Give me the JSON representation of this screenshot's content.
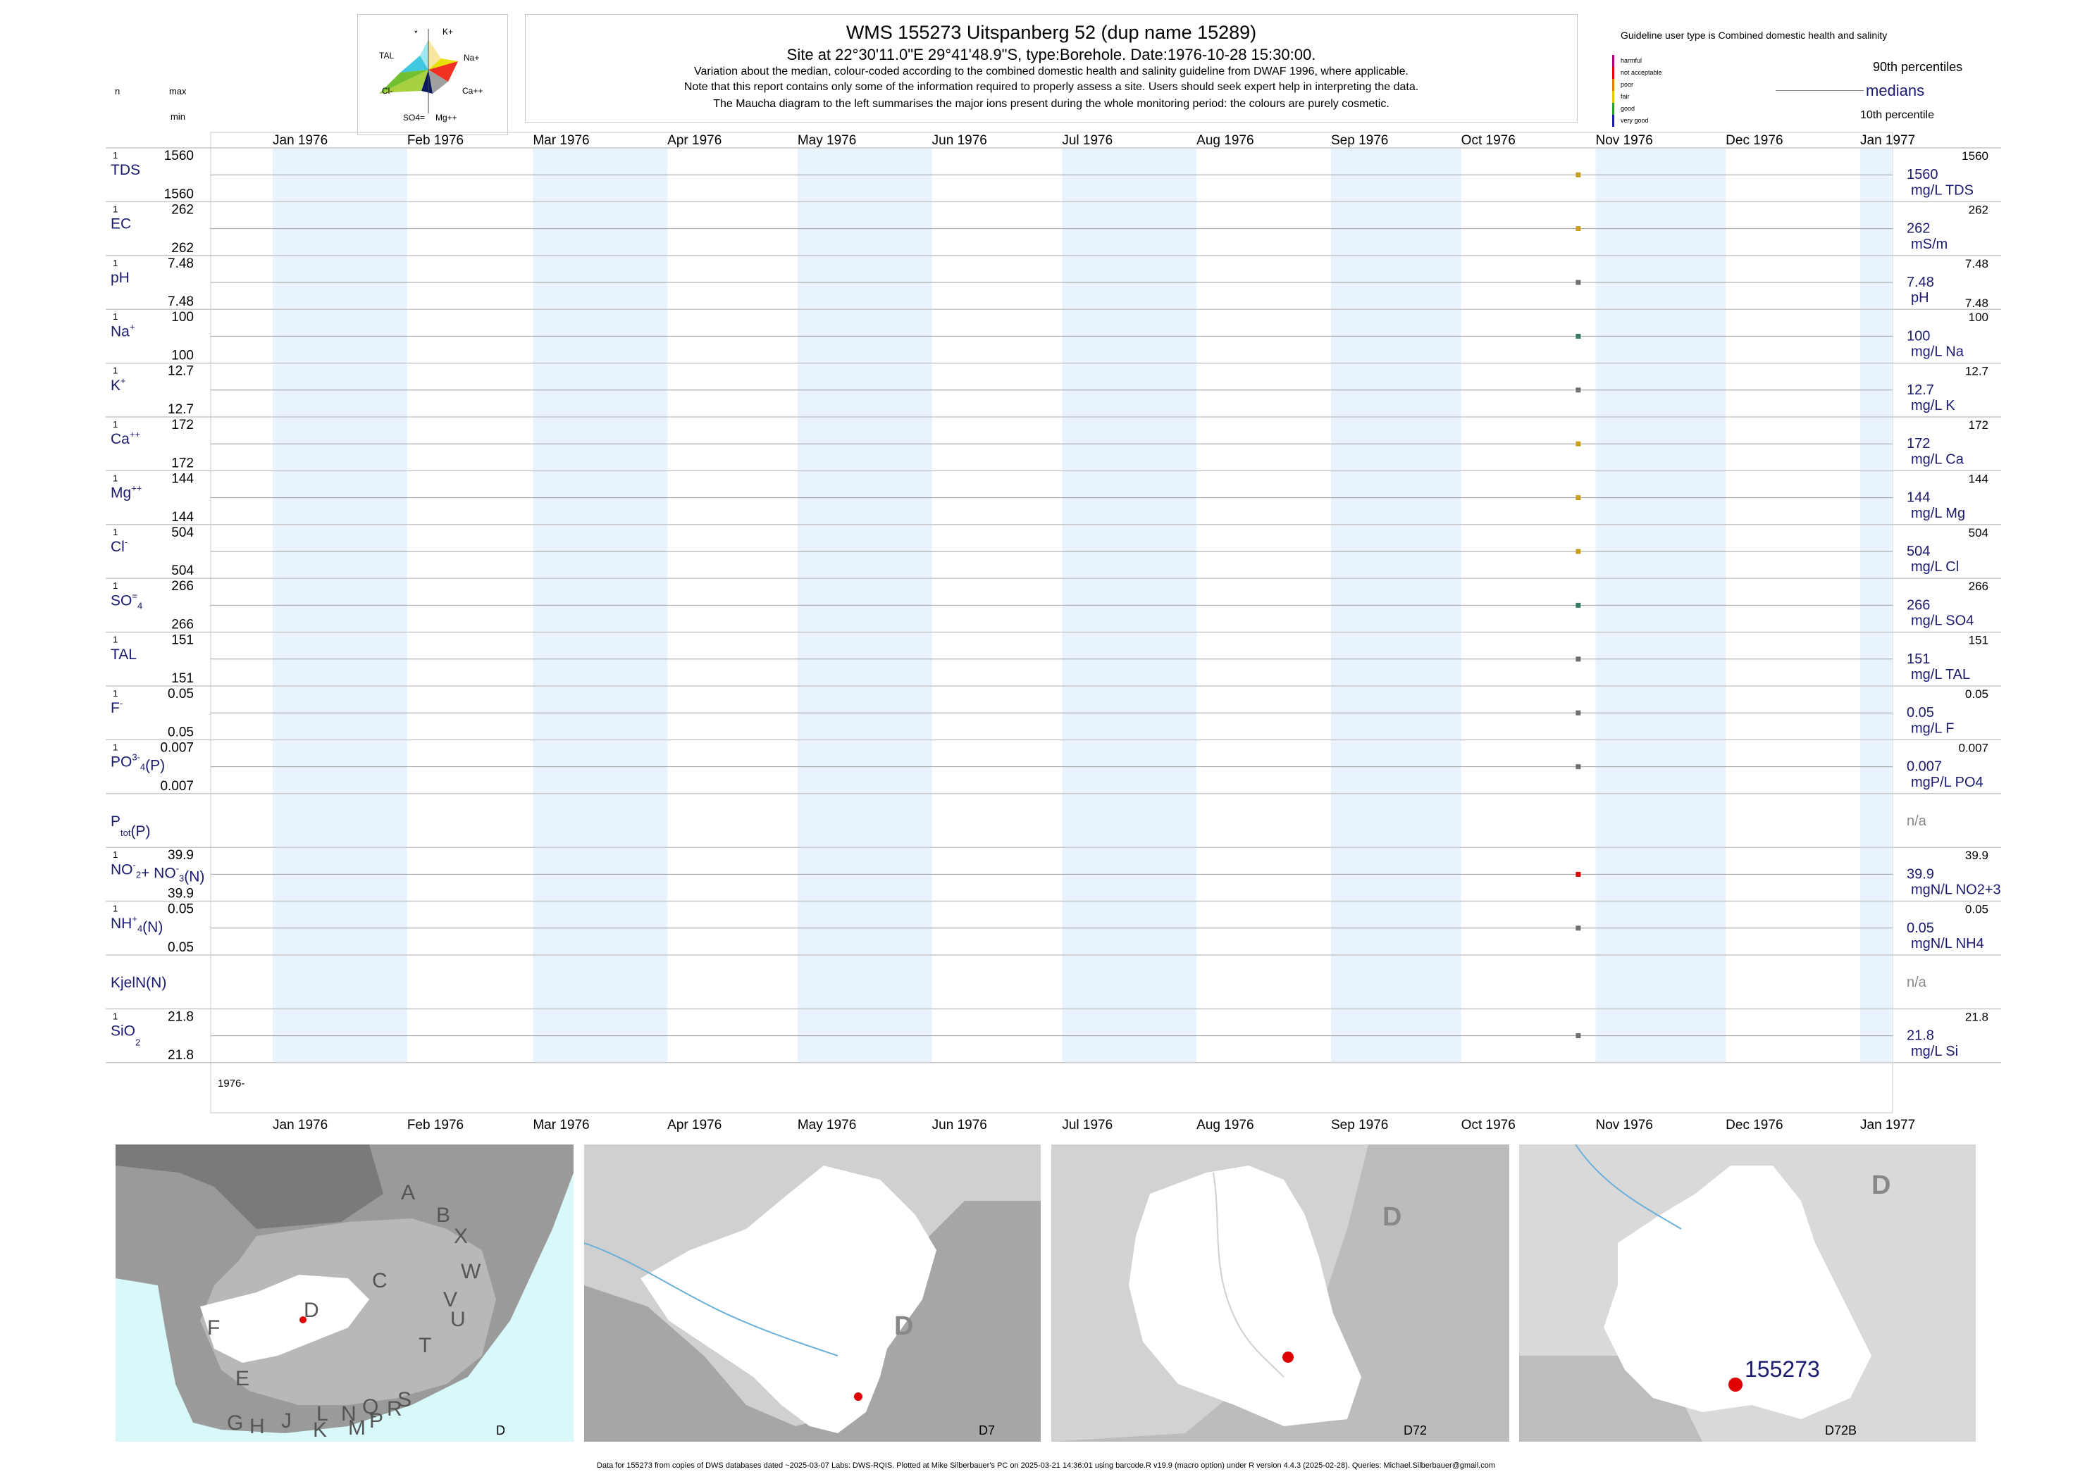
{
  "header": {
    "title": "WMS 155273  Uitspanberg 52 (dup name 15289)",
    "site": "Site at 22°30'11.0\"E 29°41'48.9\"S, type:Borehole. Date:1976-10-28 15:30:00.",
    "note1": "Variation about the median,  colour-coded according to the combined domestic health and salinity guideline from DWAF 1996, where applicable.",
    "note2": "Note that this report contains only some of the information required to properly assess a site. Users should seek expert help in interpreting the data.",
    "note3": "The Maucha diagram to the left summarises the major ions present during the whole monitoring period: the colours are purely cosmetic."
  },
  "left_header": {
    "n": "n",
    "max": "max",
    "min": "min"
  },
  "maucha": {
    "labels": [
      "*",
      "K+",
      "TAL",
      "Na+",
      "Cl-",
      "Ca++",
      "SO4=",
      "Mg++"
    ]
  },
  "legend": {
    "guideline": "Guideline user type is Combined domestic health and salinity",
    "classes": [
      {
        "label": "harmful",
        "color": "#b0007a"
      },
      {
        "label": "not acceptable",
        "color": "#e00000"
      },
      {
        "label": "poor",
        "color": "#f07a00"
      },
      {
        "label": "fair",
        "color": "#e8c800"
      },
      {
        "label": "good",
        "color": "#2aa02a"
      },
      {
        "label": "very good",
        "color": "#1a1ab0"
      }
    ],
    "p90": "90th percentiles",
    "medians": "medians",
    "p10": "10th percentile"
  },
  "chart_data": {
    "type": "scatter",
    "x_axis": {
      "ticks": [
        "Jan 1976",
        "Feb 1976",
        "Mar 1976",
        "Apr 1976",
        "May 1976",
        "Jun 1976",
        "Jul 1976",
        "Aug 1976",
        "Sep 1976",
        "Oct 1976",
        "Nov 1976",
        "Dec 1976",
        "Jan 1977"
      ],
      "range": [
        "1976-01-01",
        "1977-01-01"
      ],
      "year_label": "1976-"
    },
    "sample_date": "1976-10-28",
    "variables": [
      {
        "name": "TDS",
        "n": "1",
        "max": "1560",
        "min": "1560",
        "value": 1560,
        "median_label": "1560",
        "unit": "mg/L TDS",
        "p90": "1560",
        "p10": "",
        "color": "#c8a020"
      },
      {
        "name": "EC",
        "n": "1",
        "max": "262",
        "min": "262",
        "value": 262,
        "median_label": "262",
        "unit": "mS/m",
        "p90": "262",
        "p10": "",
        "color": "#c8a020"
      },
      {
        "name": "pH",
        "n": "1",
        "max": "7.48",
        "min": "7.48",
        "value": 7.48,
        "median_label": "7.48",
        "unit": "pH",
        "p90": "7.48",
        "p10": "7.48",
        "color": "#707070"
      },
      {
        "name": "Na",
        "n": "1",
        "max": "100",
        "min": "100",
        "value": 100,
        "median_label": "100",
        "unit": "mg/L Na",
        "p90": "100",
        "p10": "",
        "color": "#3a7a60"
      },
      {
        "name": "K",
        "n": "1",
        "max": "12.7",
        "min": "12.7",
        "value": 12.7,
        "median_label": "12.7",
        "unit": "mg/L K",
        "p90": "12.7",
        "p10": "",
        "color": "#707070"
      },
      {
        "name": "Ca",
        "n": "1",
        "max": "172",
        "min": "172",
        "value": 172,
        "median_label": "172",
        "unit": "mg/L Ca",
        "p90": "172",
        "p10": "",
        "color": "#c8a020"
      },
      {
        "name": "Mg",
        "n": "1",
        "max": "144",
        "min": "144",
        "value": 144,
        "median_label": "144",
        "unit": "mg/L Mg",
        "p90": "144",
        "p10": "",
        "color": "#c8a020"
      },
      {
        "name": "Cl",
        "n": "1",
        "max": "504",
        "min": "504",
        "value": 504,
        "median_label": "504",
        "unit": "mg/L Cl",
        "p90": "504",
        "p10": "",
        "color": "#c8a020"
      },
      {
        "name": "SO4",
        "n": "1",
        "max": "266",
        "min": "266",
        "value": 266,
        "median_label": "266",
        "unit": "mg/L SO4",
        "p90": "266",
        "p10": "",
        "color": "#3a7a60"
      },
      {
        "name": "TAL",
        "n": "1",
        "max": "151",
        "min": "151",
        "value": 151,
        "median_label": "151",
        "unit": "mg/L TAL",
        "p90": "151",
        "p10": "",
        "color": "#707070"
      },
      {
        "name": "F",
        "n": "1",
        "max": "0.05",
        "min": "0.05",
        "value": 0.05,
        "median_label": "0.05",
        "unit": "mg/L F",
        "p90": "0.05",
        "p10": "",
        "color": "#707070"
      },
      {
        "name": "PO4(P)",
        "n": "1",
        "max": "0.007",
        "min": "0.007",
        "value": 0.007,
        "median_label": "0.007",
        "unit": "mgP/L PO4",
        "p90": "0.007",
        "p10": "",
        "color": "#707070"
      },
      {
        "name": "Ptot(P)",
        "n": "",
        "max": "",
        "min": "",
        "value": null,
        "median_label": "n/a",
        "unit": "",
        "p90": "",
        "p10": "",
        "color": "#707070"
      },
      {
        "name": "NO2+NO3(N)",
        "n": "1",
        "max": "39.9",
        "min": "39.9",
        "value": 39.9,
        "median_label": "39.9",
        "unit": "mgN/L NO2+3",
        "p90": "39.9",
        "p10": "",
        "color": "#e00000"
      },
      {
        "name": "NH4(N)",
        "n": "1",
        "max": "0.05",
        "min": "0.05",
        "value": 0.05,
        "median_label": "0.05",
        "unit": "mgN/L NH4",
        "p90": "0.05",
        "p10": "",
        "color": "#707070"
      },
      {
        "name": "KjelN(N)",
        "n": "",
        "max": "",
        "min": "",
        "value": null,
        "median_label": "n/a",
        "unit": "",
        "p90": "",
        "p10": "",
        "color": "#707070"
      },
      {
        "name": "SiO2",
        "n": "1",
        "max": "21.8",
        "min": "21.8",
        "value": 21.8,
        "median_label": "21.8",
        "unit": "mg/L Si",
        "p90": "21.8",
        "p10": "",
        "color": "#707070"
      }
    ]
  },
  "maps": {
    "map1": {
      "caption": "D",
      "regions": [
        "A",
        "B",
        "X",
        "W",
        "C",
        "V",
        "U",
        "D",
        "T",
        "F",
        "E",
        "S",
        "R",
        "Q",
        "N",
        "L",
        "G",
        "H",
        "J",
        "K",
        "M",
        "P"
      ]
    },
    "map2": {
      "caption": "D7",
      "label": "D"
    },
    "map3": {
      "caption": "D72",
      "label": "D"
    },
    "map4": {
      "caption": "D72B",
      "label": "D",
      "site_label": "155273"
    }
  },
  "footer": "Data for 155273 from copies of DWS databases dated ~2025-03-07 Labs: DWS-RQIS. Plotted at Mike Silberbauer's PC on 2025-03-21 14:36:01 using barcode.R v19.9 (macro option) under R version 4.4.3 (2025-02-28). Queries: Michael.Silberbauer@gmail.com"
}
